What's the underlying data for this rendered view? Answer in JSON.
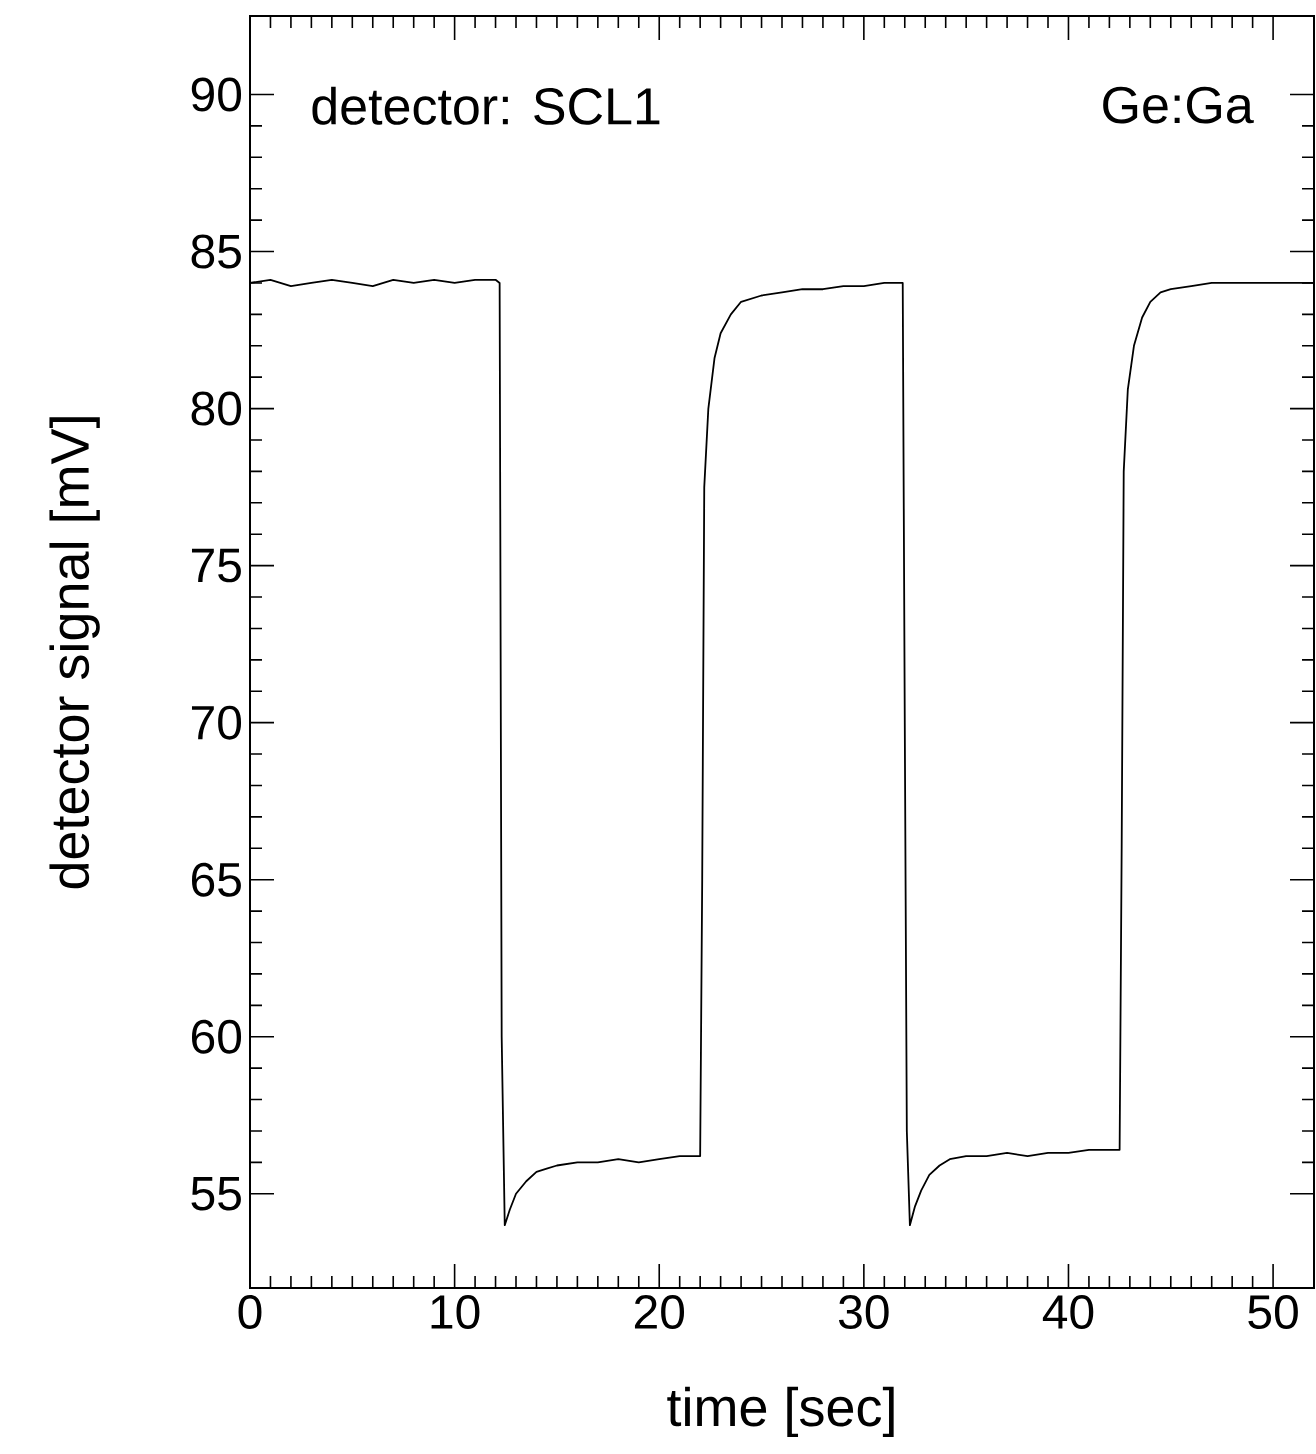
{
  "chart_data": {
    "type": "line",
    "xlabel": "time [sec]",
    "ylabel": "detector signal [mV]",
    "annotations": [
      "detector: SCL1",
      "Ge:Ga"
    ],
    "xlim": [
      0,
      52
    ],
    "ylim": [
      52,
      92.5
    ],
    "xticks": [
      0,
      10,
      20,
      30,
      40,
      50
    ],
    "yticks": [
      55,
      60,
      65,
      70,
      75,
      80,
      85,
      90
    ],
    "grid": false,
    "marker": "none",
    "line_style": "solid",
    "series": [
      {
        "color": "#000000",
        "x": [
          0,
          1,
          2,
          3,
          4,
          5,
          6,
          7,
          8,
          9,
          10,
          11,
          12,
          12.2,
          12.3,
          12.45,
          12.7,
          13.0,
          13.5,
          14.0,
          14.5,
          15.0,
          16.0,
          17.0,
          18.0,
          19.0,
          20.0,
          21.0,
          22.0,
          22.1,
          22.2,
          22.4,
          22.7,
          23.0,
          23.5,
          24.0,
          25.0,
          26.0,
          27.0,
          28.0,
          29.0,
          30.0,
          31.0,
          31.9,
          32.0,
          32.1,
          32.25,
          32.5,
          32.8,
          33.2,
          33.7,
          34.2,
          35.0,
          36.0,
          37.0,
          38.0,
          39.0,
          40.0,
          41.0,
          42.0,
          42.5,
          42.6,
          42.7,
          42.9,
          43.2,
          43.6,
          44.0,
          44.5,
          45.0,
          46.0,
          47.0,
          48.0,
          49.0,
          50.0,
          51.0,
          52.0
        ],
        "values": [
          84.0,
          84.1,
          83.9,
          84.0,
          84.1,
          84.0,
          83.9,
          84.1,
          84.0,
          84.1,
          84.0,
          84.1,
          84.1,
          84.0,
          60.0,
          54.0,
          54.5,
          55.0,
          55.4,
          55.7,
          55.8,
          55.9,
          56.0,
          56.0,
          56.1,
          56.0,
          56.1,
          56.2,
          56.2,
          65.0,
          77.5,
          80.0,
          81.6,
          82.4,
          83.0,
          83.4,
          83.6,
          83.7,
          83.8,
          83.8,
          83.9,
          83.9,
          84.0,
          84.0,
          70.0,
          57.0,
          54.0,
          54.6,
          55.1,
          55.6,
          55.9,
          56.1,
          56.2,
          56.2,
          56.3,
          56.2,
          56.3,
          56.3,
          56.4,
          56.4,
          56.4,
          66.0,
          78.0,
          80.6,
          82.0,
          82.9,
          83.4,
          83.7,
          83.8,
          83.9,
          84.0,
          84.0,
          84.0,
          84.0,
          84.0,
          84.0
        ]
      }
    ]
  }
}
